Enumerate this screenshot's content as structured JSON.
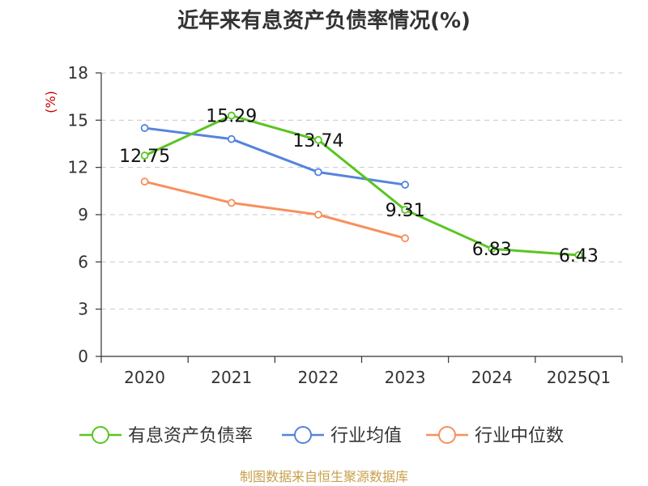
{
  "chart_data": {
    "type": "line",
    "title": "近年来有息资产负债率情况(%)",
    "ylabel": "(%)",
    "ylim": [
      0,
      18
    ],
    "yticks": [
      0,
      3,
      6,
      9,
      12,
      15,
      18
    ],
    "grid": true,
    "legend_position": "bottom",
    "categories": [
      "2020",
      "2021",
      "2022",
      "2023",
      "2024",
      "2025Q1"
    ],
    "series": [
      {
        "name": "有息资产负债率",
        "color": "#5ac522",
        "values": [
          12.75,
          15.29,
          13.74,
          9.31,
          6.83,
          6.43
        ],
        "data_labels": true
      },
      {
        "name": "行业均值",
        "color": "#5584dc",
        "values": [
          14.5,
          13.8,
          11.7,
          10.9,
          null,
          null
        ],
        "data_labels": false
      },
      {
        "name": "行业中位数",
        "color": "#f6905e",
        "values": [
          11.1,
          9.75,
          9.0,
          7.5,
          null,
          null
        ],
        "data_labels": false
      }
    ],
    "ylabel_color": "#cc0000"
  },
  "footer": {
    "source": "制图数据来自恒生聚源数据库",
    "color": "#c8a04a"
  }
}
